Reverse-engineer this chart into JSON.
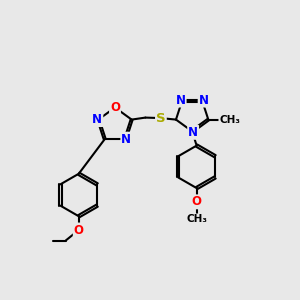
{
  "bg_color": "#e8e8e8",
  "bond_color": "#000000",
  "bond_lw": 1.5,
  "dbo": 0.04,
  "atom_colors": {
    "N": "#0000ff",
    "O": "#ff0000",
    "S": "#aaaa00",
    "C": "#000000"
  },
  "fs": 8.5,
  "fs_small": 7.5
}
